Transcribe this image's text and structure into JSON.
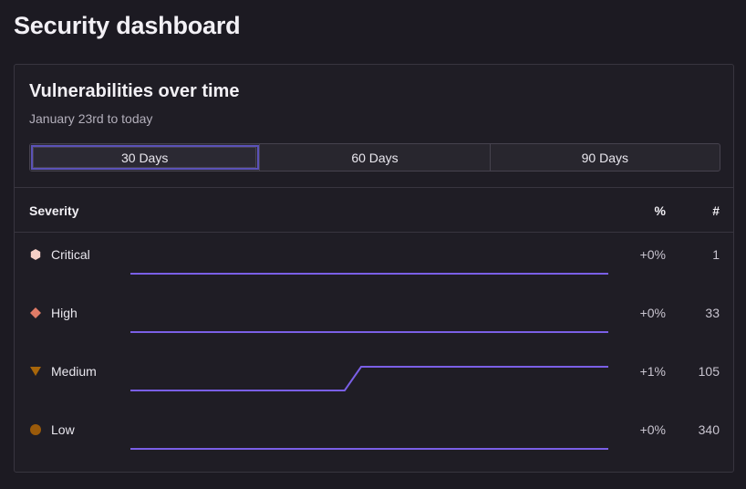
{
  "page": {
    "title": "Security dashboard"
  },
  "card": {
    "title": "Vulnerabilities over time",
    "subtitle": "January 23rd to today",
    "ranges": [
      {
        "label": "30 Days",
        "selected": true
      },
      {
        "label": "60 Days",
        "selected": false
      },
      {
        "label": "90 Days",
        "selected": false
      }
    ],
    "columns": {
      "severity": "Severity",
      "percent": "%",
      "count": "#"
    },
    "rows": [
      {
        "severity": "Critical",
        "icon": "hexagon-icon",
        "color": "#f6d0c7",
        "change": "+0%",
        "count": "1",
        "trend": [
          0,
          0
        ]
      },
      {
        "severity": "High",
        "icon": "diamond-icon",
        "color": "#e07b67",
        "change": "+0%",
        "count": "33",
        "trend": [
          0,
          0
        ]
      },
      {
        "severity": "Medium",
        "icon": "triangle-down-icon",
        "color": "#a8660a",
        "change": "+1%",
        "count": "105",
        "trend": [
          0,
          0,
          0,
          0,
          0,
          0,
          0,
          0,
          0,
          0,
          0,
          0,
          0,
          0,
          1,
          1,
          1,
          1,
          1,
          1,
          1,
          1,
          1,
          1,
          1,
          1,
          1,
          1,
          1,
          1
        ]
      },
      {
        "severity": "Low",
        "icon": "circle-icon",
        "color": "#9a5a0a",
        "change": "+0%",
        "count": "340",
        "trend": [
          0,
          0
        ]
      }
    ],
    "accent": "#7a5fe6"
  }
}
